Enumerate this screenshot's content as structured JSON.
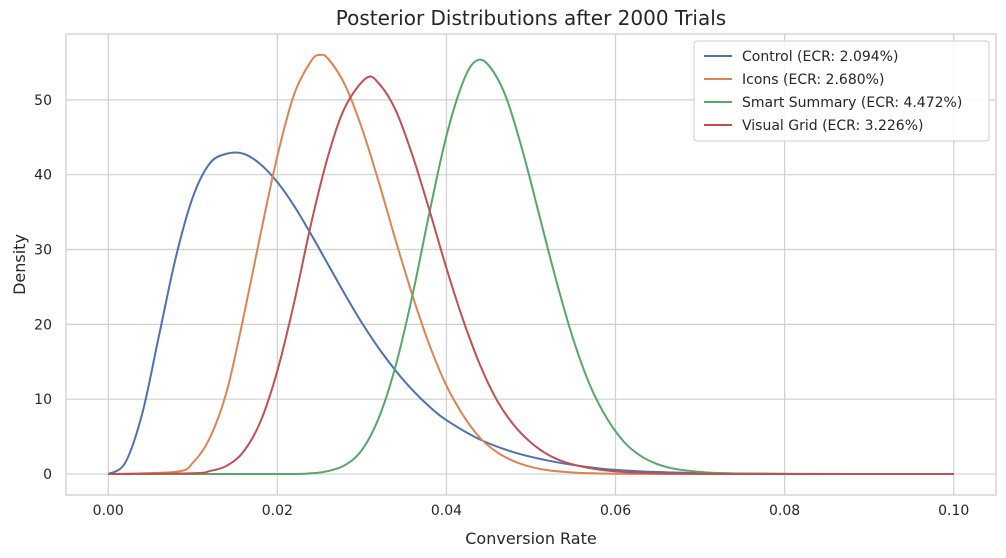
{
  "chart_data": {
    "type": "line",
    "title": "Posterior Distributions after 2000 Trials",
    "xlabel": "Conversion Rate",
    "ylabel": "Density",
    "xlim": [
      -0.005,
      0.105
    ],
    "ylim": [
      -2.8,
      58.8
    ],
    "xticks": [
      0.0,
      0.02,
      0.04,
      0.06,
      0.08,
      0.1
    ],
    "xtick_labels": [
      "0.00",
      "0.02",
      "0.04",
      "0.06",
      "0.08",
      "0.10"
    ],
    "yticks": [
      0,
      10,
      20,
      30,
      40,
      50
    ],
    "ytick_labels": [
      "0",
      "10",
      "20",
      "30",
      "40",
      "50"
    ],
    "grid": true,
    "legend_position": "top-right",
    "series": [
      {
        "name": "Control (ECR: 2.094%)",
        "color": "#4c72b0",
        "x": [
          0.0,
          0.002,
          0.004,
          0.006,
          0.008,
          0.01,
          0.012,
          0.014,
          0.016,
          0.018,
          0.02,
          0.022,
          0.024,
          0.026,
          0.028,
          0.03,
          0.032,
          0.034,
          0.036,
          0.038,
          0.04,
          0.044,
          0.048,
          0.052,
          0.056,
          0.06,
          0.065,
          0.07,
          0.08,
          0.09,
          0.1
        ],
        "y": [
          0.0,
          1.5,
          8.0,
          18.5,
          29.0,
          37.0,
          41.5,
          42.8,
          42.8,
          41.4,
          39.0,
          35.8,
          32.0,
          28.0,
          24.0,
          20.2,
          16.8,
          13.8,
          11.2,
          9.0,
          7.2,
          4.6,
          2.9,
          1.8,
          1.05,
          0.55,
          0.27,
          0.13,
          0.03,
          0.01,
          0.0
        ]
      },
      {
        "name": "Icons (ECR: 2.680%)",
        "color": "#dd8452",
        "x": [
          0.0,
          0.008,
          0.01,
          0.012,
          0.014,
          0.016,
          0.018,
          0.02,
          0.022,
          0.024,
          0.025,
          0.026,
          0.028,
          0.03,
          0.032,
          0.034,
          0.036,
          0.038,
          0.04,
          0.042,
          0.044,
          0.046,
          0.048,
          0.05,
          0.052,
          0.055,
          0.058,
          0.062,
          0.07,
          0.08,
          0.1
        ],
        "y": [
          0.0,
          0.3,
          1.5,
          4.8,
          11.0,
          21.0,
          32.0,
          42.5,
          50.8,
          55.2,
          56.0,
          55.5,
          52.0,
          46.2,
          39.0,
          31.2,
          23.8,
          17.2,
          11.8,
          7.8,
          4.8,
          2.9,
          1.7,
          0.95,
          0.5,
          0.2,
          0.08,
          0.02,
          0.0,
          0.0,
          0.0
        ]
      },
      {
        "name": "Smart Summary (ECR: 4.472%)",
        "color": "#55a868",
        "x": [
          0.0,
          0.02,
          0.024,
          0.026,
          0.028,
          0.03,
          0.032,
          0.034,
          0.036,
          0.038,
          0.04,
          0.042,
          0.0435,
          0.045,
          0.047,
          0.049,
          0.051,
          0.053,
          0.055,
          0.057,
          0.059,
          0.061,
          0.063,
          0.065,
          0.067,
          0.07,
          0.073,
          0.077,
          0.085,
          0.1
        ],
        "y": [
          0.0,
          0.0,
          0.1,
          0.4,
          1.2,
          3.2,
          7.5,
          14.5,
          24.0,
          35.0,
          45.2,
          52.5,
          55.2,
          54.6,
          50.5,
          43.2,
          34.5,
          25.8,
          18.0,
          11.8,
          7.4,
          4.3,
          2.4,
          1.3,
          0.7,
          0.28,
          0.1,
          0.03,
          0.0,
          0.0
        ]
      },
      {
        "name": "Visual Grid (ECR: 3.226%)",
        "color": "#c44e52",
        "x": [
          0.0,
          0.01,
          0.012,
          0.014,
          0.016,
          0.018,
          0.02,
          0.022,
          0.024,
          0.026,
          0.028,
          0.0305,
          0.032,
          0.034,
          0.036,
          0.038,
          0.04,
          0.042,
          0.044,
          0.046,
          0.048,
          0.05,
          0.052,
          0.054,
          0.056,
          0.058,
          0.06,
          0.063,
          0.067,
          0.075,
          0.085,
          0.1
        ],
        "y": [
          0.0,
          0.1,
          0.4,
          1.1,
          3.0,
          7.0,
          13.8,
          23.0,
          33.5,
          42.5,
          49.0,
          52.9,
          52.2,
          48.6,
          42.5,
          35.2,
          27.5,
          20.5,
          14.5,
          9.8,
          6.5,
          4.2,
          2.6,
          1.6,
          1.0,
          0.6,
          0.35,
          0.15,
          0.05,
          0.01,
          0.0,
          0.0
        ]
      }
    ]
  }
}
